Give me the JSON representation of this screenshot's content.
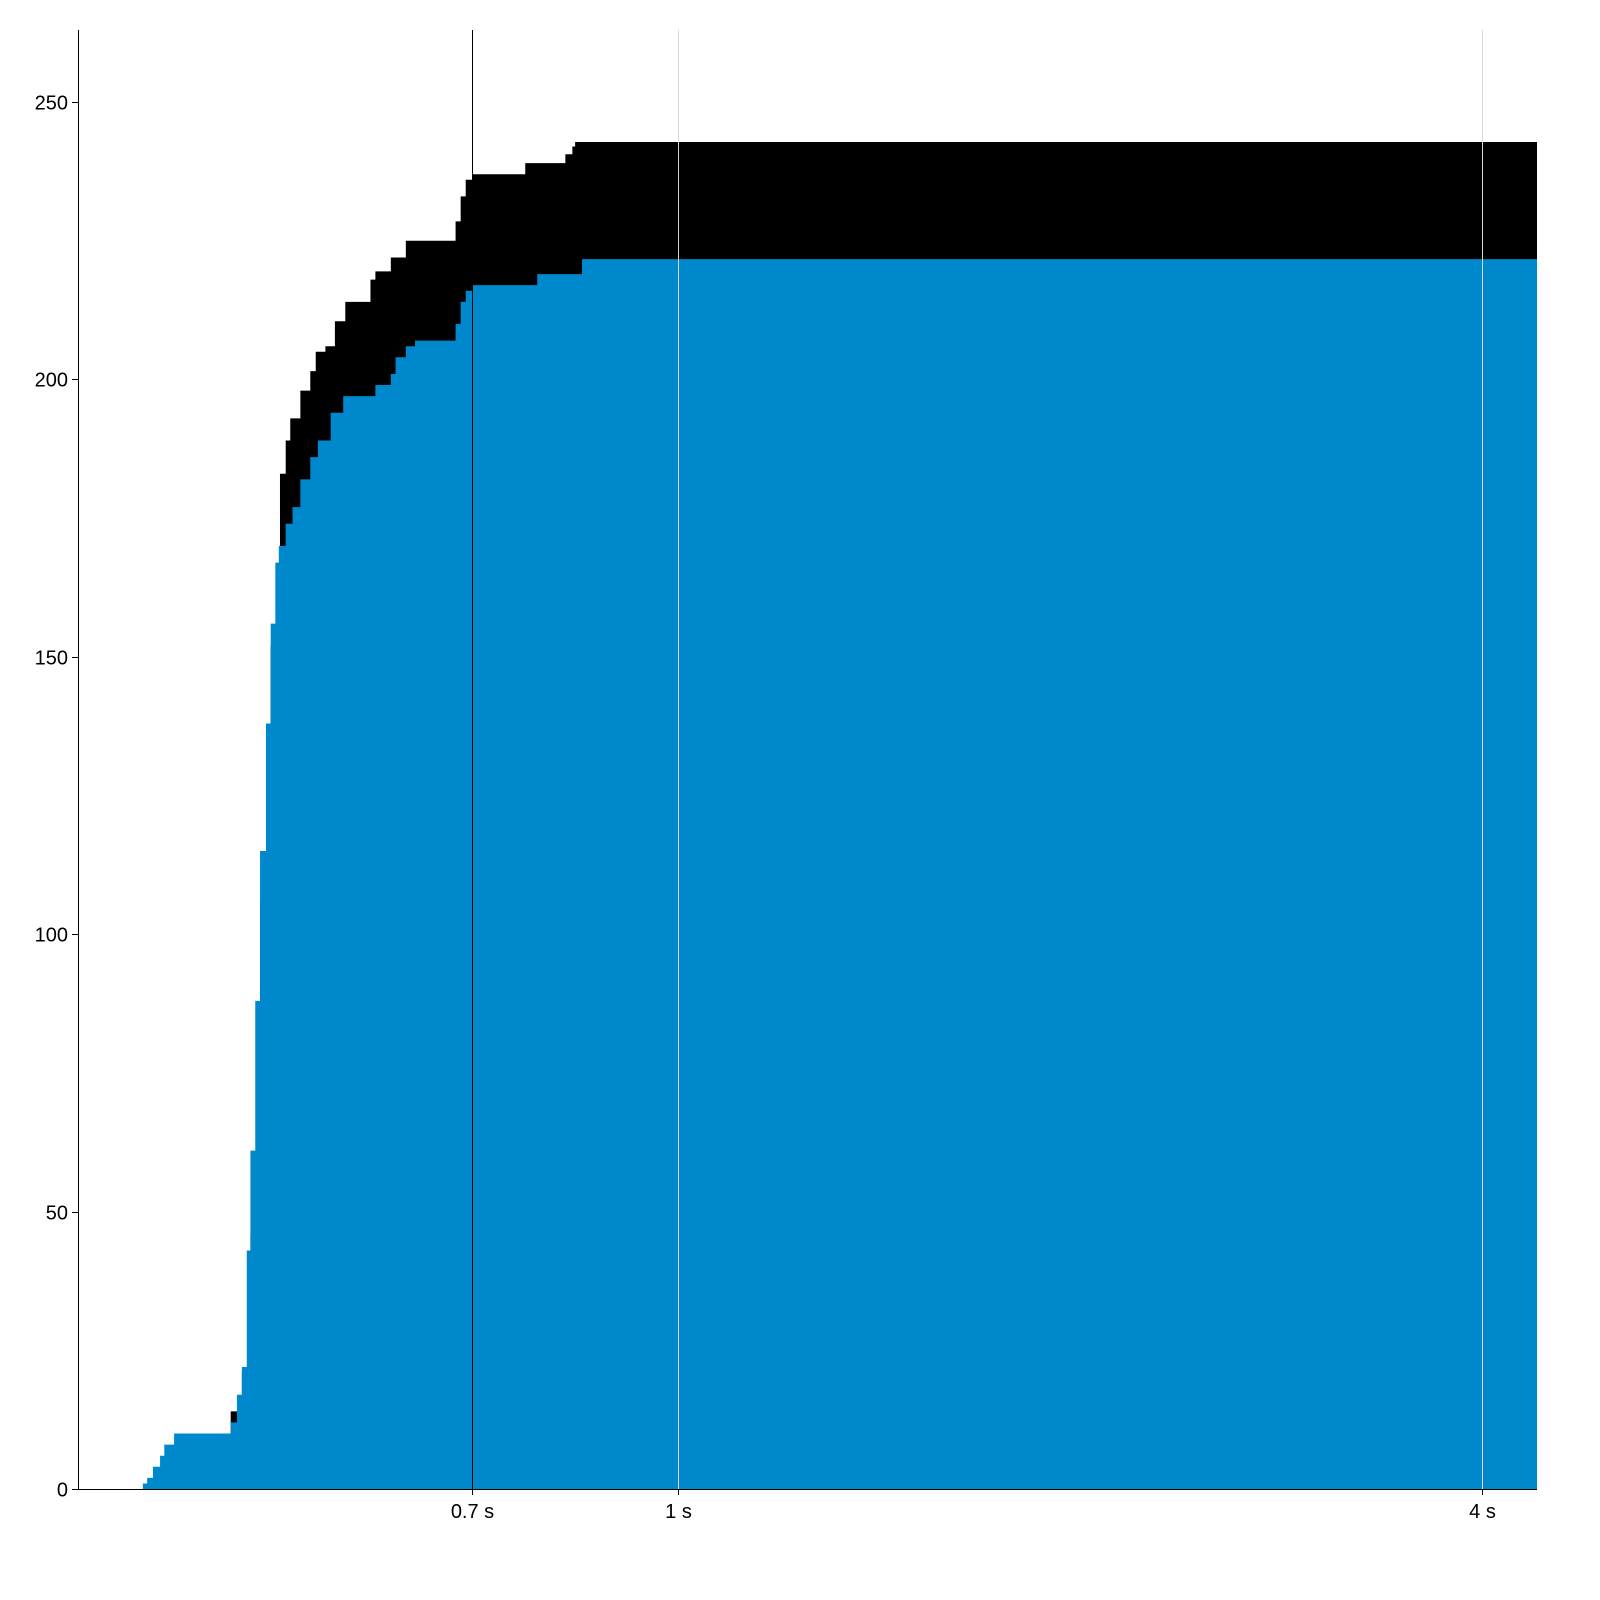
{
  "chart_data": {
    "type": "area",
    "step": true,
    "stacked": true,
    "x_scale": "log",
    "xlim": [
      0.355,
      4.4
    ],
    "ylim": [
      0,
      263
    ],
    "xticks": [
      {
        "value": 0.7,
        "label": "0.7 s"
      },
      {
        "value": 1,
        "label": "1 s"
      },
      {
        "value": 4,
        "label": "4 s"
      }
    ],
    "yticks": [
      {
        "value": 0,
        "label": "0"
      },
      {
        "value": 50,
        "label": "50"
      },
      {
        "value": 100,
        "label": "100"
      },
      {
        "value": 150,
        "label": "150"
      },
      {
        "value": 200,
        "label": "200"
      },
      {
        "value": 250,
        "label": "250"
      }
    ],
    "grid": "vertical at x ticks",
    "marker_line": 0.7,
    "colors": {
      "lower": "#0088cc",
      "upper": "#000000",
      "grid": "#d9d9d9"
    },
    "series": [
      {
        "color": "#0088cc",
        "points": [
          [
            0.395,
            0
          ],
          [
            0.397,
            1
          ],
          [
            0.4,
            2
          ],
          [
            0.404,
            4
          ],
          [
            0.409,
            6
          ],
          [
            0.412,
            8
          ],
          [
            0.419,
            10
          ],
          [
            0.462,
            12
          ],
          [
            0.467,
            17
          ],
          [
            0.471,
            22
          ],
          [
            0.475,
            43
          ],
          [
            0.478,
            61
          ],
          [
            0.482,
            88
          ],
          [
            0.486,
            115
          ],
          [
            0.491,
            138
          ],
          [
            0.495,
            156
          ],
          [
            0.499,
            167
          ],
          [
            0.502,
            170
          ],
          [
            0.508,
            174
          ],
          [
            0.514,
            177
          ],
          [
            0.521,
            182
          ],
          [
            0.53,
            186
          ],
          [
            0.537,
            189
          ],
          [
            0.549,
            194
          ],
          [
            0.561,
            197
          ],
          [
            0.593,
            199
          ],
          [
            0.609,
            201
          ],
          [
            0.614,
            204
          ],
          [
            0.625,
            206
          ],
          [
            0.635,
            207
          ],
          [
            0.681,
            210
          ],
          [
            0.687,
            214
          ],
          [
            0.693,
            216
          ],
          [
            0.701,
            217
          ],
          [
            0.784,
            219
          ],
          [
            0.847,
            221.7
          ],
          [
            4.4,
            221.7
          ]
        ]
      },
      {
        "color": "#000000",
        "cumulative": true,
        "points": [
          [
            0.462,
            14
          ],
          [
            0.471,
            21
          ],
          [
            0.478,
            46
          ],
          [
            0.486,
            106
          ],
          [
            0.495,
            152
          ],
          [
            0.503,
            183
          ],
          [
            0.508,
            189
          ],
          [
            0.512,
            193
          ],
          [
            0.521,
            198
          ],
          [
            0.53,
            201.5
          ],
          [
            0.535,
            205
          ],
          [
            0.544,
            206
          ],
          [
            0.553,
            210.5
          ],
          [
            0.563,
            214
          ],
          [
            0.588,
            218
          ],
          [
            0.593,
            219.5
          ],
          [
            0.609,
            222
          ],
          [
            0.625,
            225
          ],
          [
            0.681,
            228.5
          ],
          [
            0.687,
            233
          ],
          [
            0.693,
            236
          ],
          [
            0.701,
            237
          ],
          [
            0.768,
            239
          ],
          [
            0.823,
            240.6
          ],
          [
            0.833,
            242
          ],
          [
            0.837,
            242.8
          ],
          [
            4.4,
            242.8
          ]
        ]
      }
    ]
  }
}
